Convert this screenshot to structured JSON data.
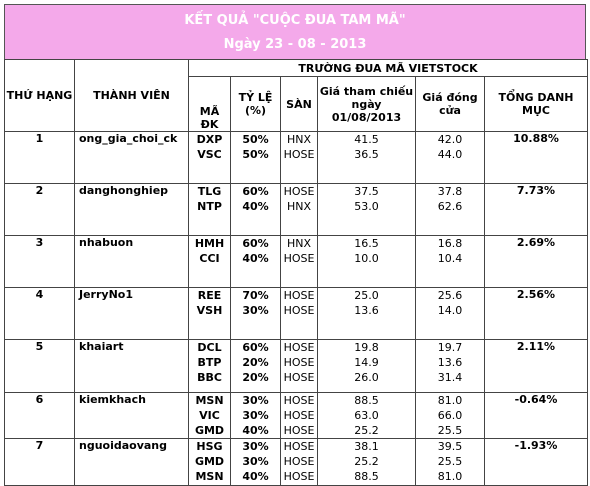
{
  "title": "KẾT QUẢ \"CUỘC ĐUA TAM MÃ\"",
  "subtitle": "Ngày 23 - 08 - 2013",
  "headers": {
    "rank": "THỨ HẠNG",
    "member": "THÀNH VIÊN",
    "group": "TRƯỜNG ĐUA MÃ VIETSTOCK",
    "code": "MÃ ĐK",
    "ratio": "TỶ LỆ (%)",
    "exchange": "SÀN",
    "ref_price": "Giá tham chiếu ngày 01/08/2013",
    "close_price": "Giá đóng cửa",
    "total": "TỔNG DANH MỤC"
  },
  "rows": [
    {
      "rank": "1",
      "member": "ong_gia_choi_ck",
      "total": "10.88%",
      "stocks": [
        {
          "code": "DXP",
          "ratio": "50%",
          "exchange": "HNX",
          "ref": "41.5",
          "close": "42.0"
        },
        {
          "code": "VSC",
          "ratio": "50%",
          "exchange": "HOSE",
          "ref": "36.5",
          "close": "44.0"
        }
      ]
    },
    {
      "rank": "2",
      "member": "danghonghiep",
      "total": "7.73%",
      "stocks": [
        {
          "code": "TLG",
          "ratio": "60%",
          "exchange": "HOSE",
          "ref": "37.5",
          "close": "37.8"
        },
        {
          "code": "NTP",
          "ratio": "40%",
          "exchange": "HNX",
          "ref": "53.0",
          "close": "62.6"
        }
      ]
    },
    {
      "rank": "3",
      "member": "nhabuon",
      "total": "2.69%",
      "stocks": [
        {
          "code": "HMH",
          "ratio": "60%",
          "exchange": "HNX",
          "ref": "16.5",
          "close": "16.8"
        },
        {
          "code": "CCI",
          "ratio": "40%",
          "exchange": "HOSE",
          "ref": "10.0",
          "close": "10.4"
        }
      ]
    },
    {
      "rank": "4",
      "member": "JerryNo1",
      "total": "2.56%",
      "stocks": [
        {
          "code": "REE",
          "ratio": "70%",
          "exchange": "HOSE",
          "ref": "25.0",
          "close": "25.6"
        },
        {
          "code": "VSH",
          "ratio": "30%",
          "exchange": "HOSE",
          "ref": "13.6",
          "close": "14.0"
        }
      ]
    },
    {
      "rank": "5",
      "member": "khaiart",
      "total": "2.11%",
      "stocks": [
        {
          "code": "DCL",
          "ratio": "60%",
          "exchange": "HOSE",
          "ref": "19.8",
          "close": "19.7"
        },
        {
          "code": "BTP",
          "ratio": "20%",
          "exchange": "HOSE",
          "ref": "14.9",
          "close": "13.6"
        },
        {
          "code": "BBC",
          "ratio": "20%",
          "exchange": "HOSE",
          "ref": "26.0",
          "close": "31.4"
        }
      ]
    },
    {
      "rank": "6",
      "member": "kiemkhach",
      "total": "-0.64%",
      "stocks": [
        {
          "code": "MSN",
          "ratio": "30%",
          "exchange": "HOSE",
          "ref": "88.5",
          "close": "81.0"
        },
        {
          "code": "VIC",
          "ratio": "30%",
          "exchange": "HOSE",
          "ref": "63.0",
          "close": "66.0"
        },
        {
          "code": "GMD",
          "ratio": "40%",
          "exchange": "HOSE",
          "ref": "25.2",
          "close": "25.5"
        }
      ]
    },
    {
      "rank": "7",
      "member": "nguoidaovang",
      "total": "-1.93%",
      "stocks": [
        {
          "code": "HSG",
          "ratio": "30%",
          "exchange": "HOSE",
          "ref": "38.1",
          "close": "39.5"
        },
        {
          "code": "GMD",
          "ratio": "30%",
          "exchange": "HOSE",
          "ref": "25.2",
          "close": "25.5"
        },
        {
          "code": "MSN",
          "ratio": "40%",
          "exchange": "HOSE",
          "ref": "88.5",
          "close": "81.0"
        }
      ]
    }
  ]
}
